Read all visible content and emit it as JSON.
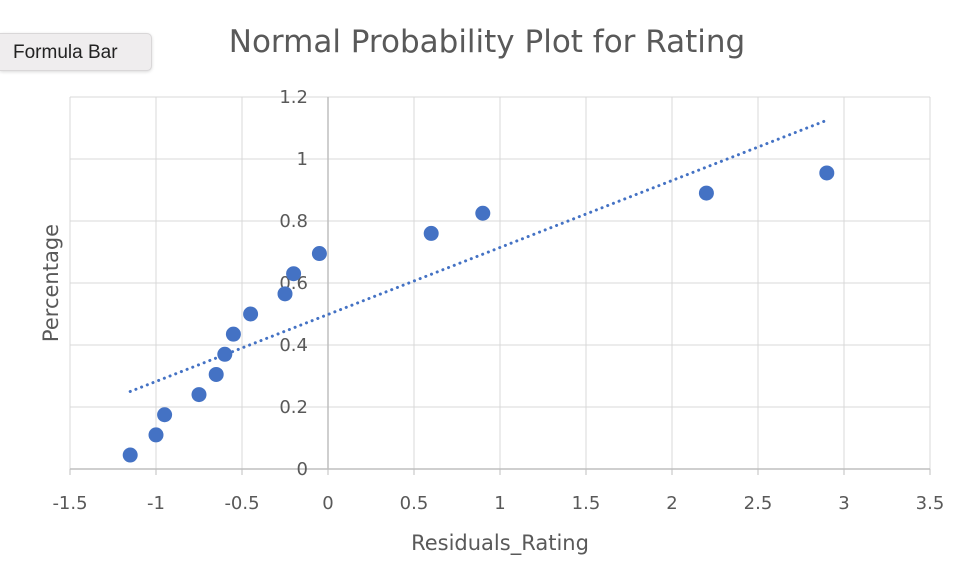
{
  "tooltip": {
    "label": "Formula Bar"
  },
  "colors": {
    "marker": "#4472c4",
    "trendline": "#4472c4",
    "gridline": "#d9d9d9",
    "axis_line": "#bfbfbf",
    "text": "#595959"
  },
  "chart_data": {
    "type": "scatter",
    "title": "Normal Probability Plot for Rating",
    "xlabel": "Residuals_Rating",
    "ylabel": "Percentage",
    "xlim": [
      -1.5,
      3.5
    ],
    "ylim": [
      0,
      1.2
    ],
    "xticks": [
      "-1.5",
      "-1",
      "-0.5",
      "0",
      "0.5",
      "1",
      "1.5",
      "2",
      "2.5",
      "3",
      "3.5"
    ],
    "yticks": [
      "0",
      "0.2",
      "0.4",
      "0.6",
      "0.8",
      "1",
      "1.2"
    ],
    "grid": true,
    "legend": "none",
    "series": [
      {
        "points": [
          {
            "x": -1.15,
            "y": 0.045
          },
          {
            "x": -1.0,
            "y": 0.11
          },
          {
            "x": -0.95,
            "y": 0.175
          },
          {
            "x": -0.75,
            "y": 0.24
          },
          {
            "x": -0.65,
            "y": 0.305
          },
          {
            "x": -0.6,
            "y": 0.37
          },
          {
            "x": -0.55,
            "y": 0.435
          },
          {
            "x": -0.45,
            "y": 0.5
          },
          {
            "x": -0.25,
            "y": 0.565
          },
          {
            "x": -0.2,
            "y": 0.63
          },
          {
            "x": -0.05,
            "y": 0.695
          },
          {
            "x": 0.6,
            "y": 0.76
          },
          {
            "x": 0.9,
            "y": 0.825
          },
          {
            "x": 2.2,
            "y": 0.89
          },
          {
            "x": 2.9,
            "y": 0.955
          }
        ]
      }
    ],
    "trendline": {
      "style": "dotted",
      "from": {
        "x": -1.15,
        "y": 0.25
      },
      "to": {
        "x": 2.9,
        "y": 1.125
      }
    }
  }
}
